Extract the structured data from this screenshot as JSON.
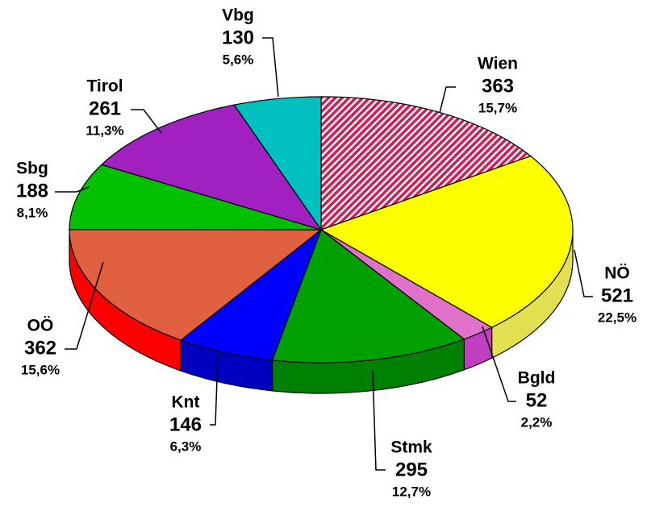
{
  "chart_data": {
    "type": "pie",
    "categories": [
      "Wien",
      "NÖ",
      "Bgld",
      "Stmk",
      "Knt",
      "OÖ",
      "Sbg",
      "Tirol",
      "Vbg"
    ],
    "values": [
      363,
      521,
      52,
      295,
      146,
      362,
      188,
      261,
      130
    ],
    "percent_labels": [
      "15,7%",
      "22,5%",
      "2,2%",
      "12,7%",
      "6,3%",
      "15,6%",
      "8,1%",
      "11,3%",
      "5,6%"
    ],
    "colors": [
      "#d81b50",
      "#ffff00",
      "#e070c8",
      "#00a000",
      "#0000ff",
      "#e06040",
      "#00c000",
      "#a020c0",
      "#00c0c0"
    ],
    "side_colors": [
      "#a01040",
      "#e0e050",
      "#c040c0",
      "#008000",
      "#0000c0",
      "#ff0000",
      "#009000",
      "#8010a0",
      "#009090"
    ],
    "hatch": [
      true,
      false,
      false,
      false,
      false,
      false,
      false,
      false,
      false
    ]
  }
}
